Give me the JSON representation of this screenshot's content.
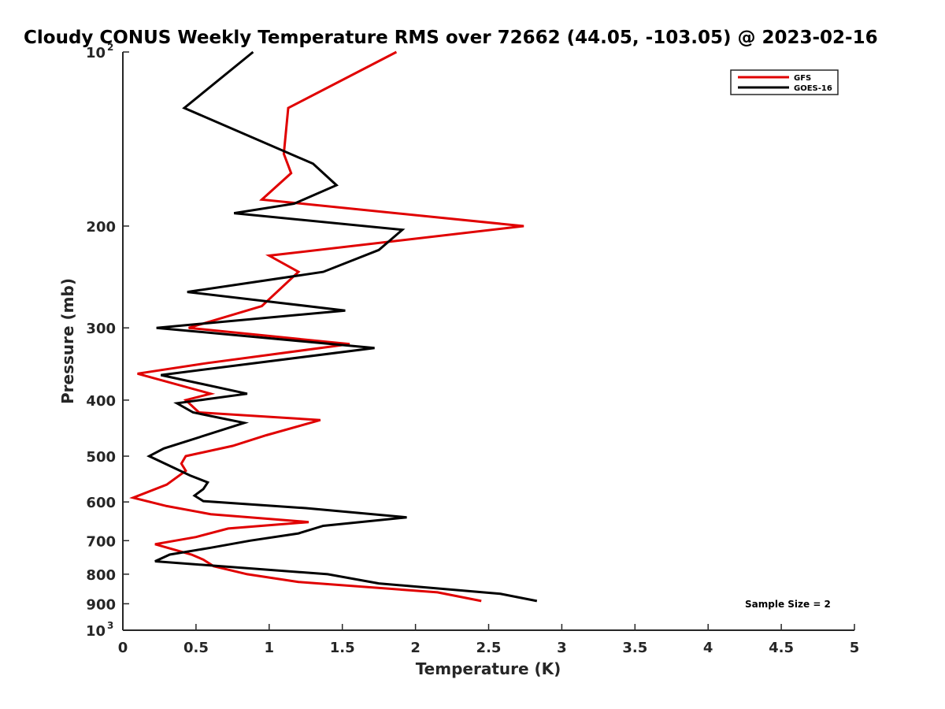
{
  "chart_data": {
    "type": "line",
    "title": "Cloudy CONUS Weekly Temperature RMS over 72662 (44.05, -103.05) @ 2023-02-16",
    "xlabel": "Temperature (K)",
    "ylabel": "Pressure (mb)",
    "xlim": [
      0,
      5
    ],
    "ylim": [
      100,
      1000
    ],
    "y_scale": "log",
    "y_reversed": true,
    "grid": false,
    "x_ticks": [
      "0",
      "0.5",
      "1",
      "1.5",
      "2",
      "2.5",
      "3",
      "3.5",
      "4",
      "4.5",
      "5"
    ],
    "y_ticks": [
      {
        "value": 100,
        "label": "10",
        "sup": "2"
      },
      {
        "value": 200,
        "label": "200"
      },
      {
        "value": 300,
        "label": "300"
      },
      {
        "value": 400,
        "label": "400"
      },
      {
        "value": 500,
        "label": "500"
      },
      {
        "value": 600,
        "label": "600"
      },
      {
        "value": 700,
        "label": "700"
      },
      {
        "value": 800,
        "label": "800"
      },
      {
        "value": 900,
        "label": "900"
      },
      {
        "value": 1000,
        "label": "10",
        "sup": "3"
      }
    ],
    "legend_position": "top-right",
    "annotation": "Sample Size = 2",
    "series": [
      {
        "name": "GFS",
        "color": "#e00000",
        "points": [
          [
            1.87,
            100
          ],
          [
            1.13,
            125
          ],
          [
            1.1,
            150
          ],
          [
            1.15,
            162
          ],
          [
            0.95,
            180
          ],
          [
            2.74,
            200
          ],
          [
            1.0,
            225
          ],
          [
            1.2,
            240
          ],
          [
            0.95,
            275
          ],
          [
            0.45,
            300
          ],
          [
            1.55,
            320
          ],
          [
            0.58,
            345
          ],
          [
            0.1,
            360
          ],
          [
            0.6,
            390
          ],
          [
            0.43,
            400
          ],
          [
            0.52,
            420
          ],
          [
            1.35,
            433
          ],
          [
            0.98,
            460
          ],
          [
            0.75,
            480
          ],
          [
            0.43,
            500
          ],
          [
            0.4,
            515
          ],
          [
            0.43,
            530
          ],
          [
            0.3,
            560
          ],
          [
            0.07,
            590
          ],
          [
            0.3,
            610
          ],
          [
            0.6,
            630
          ],
          [
            1.27,
            650
          ],
          [
            0.72,
            667
          ],
          [
            0.5,
            690
          ],
          [
            0.22,
            710
          ],
          [
            0.47,
            740
          ],
          [
            0.55,
            755
          ],
          [
            0.62,
            775
          ],
          [
            0.85,
            800
          ],
          [
            1.2,
            825
          ],
          [
            2.15,
            860
          ],
          [
            2.45,
            890
          ]
        ]
      },
      {
        "name": "GOES-16",
        "color": "#000000",
        "points": [
          [
            0.89,
            100
          ],
          [
            0.42,
            125
          ],
          [
            1.3,
            156
          ],
          [
            1.46,
            170
          ],
          [
            1.17,
            183
          ],
          [
            0.76,
            190
          ],
          [
            1.91,
            203
          ],
          [
            1.75,
            220
          ],
          [
            1.37,
            240
          ],
          [
            0.44,
            260
          ],
          [
            1.52,
            280
          ],
          [
            0.23,
            300
          ],
          [
            1.72,
            325
          ],
          [
            0.26,
            362
          ],
          [
            0.85,
            390
          ],
          [
            0.37,
            405
          ],
          [
            0.48,
            420
          ],
          [
            0.83,
            438
          ],
          [
            0.45,
            470
          ],
          [
            0.28,
            485
          ],
          [
            0.18,
            500
          ],
          [
            0.46,
            540
          ],
          [
            0.58,
            555
          ],
          [
            0.55,
            570
          ],
          [
            0.49,
            585
          ],
          [
            0.55,
            598
          ],
          [
            1.25,
            615
          ],
          [
            1.94,
            638
          ],
          [
            1.37,
            660
          ],
          [
            1.2,
            680
          ],
          [
            0.87,
            700
          ],
          [
            0.6,
            720
          ],
          [
            0.32,
            740
          ],
          [
            0.22,
            760
          ],
          [
            1.4,
            800
          ],
          [
            1.75,
            830
          ],
          [
            2.58,
            865
          ],
          [
            2.83,
            890
          ]
        ]
      }
    ]
  }
}
